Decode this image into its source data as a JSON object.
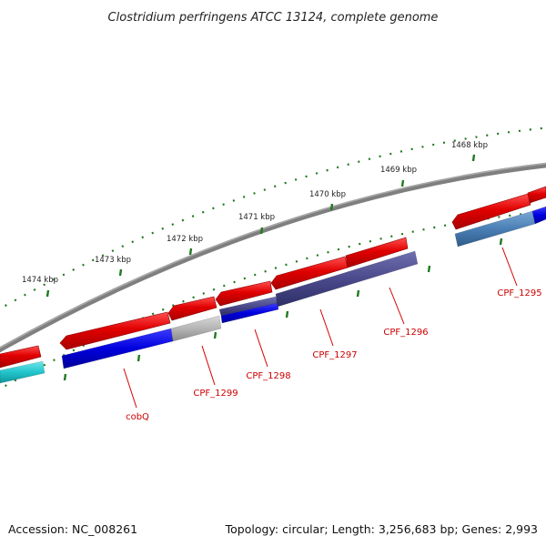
{
  "title": "Clostridium perfringens ATCC 13124, complete genome",
  "footer": {
    "accession": "Accession: NC_008261",
    "summary": "Topology: circular; Length: 3,256,683 bp; Genes: 2,993"
  },
  "kbp_labels": [
    "1468 kbp",
    "1469 kbp",
    "1470 kbp",
    "1471 kbp",
    "1472 kbp",
    "1473 kbp",
    "1474 kbp"
  ],
  "gene_labels": [
    "CPF_1295",
    "CPF_1296",
    "CPF_1297",
    "CPF_1298",
    "CPF_1299",
    "cobQ"
  ],
  "colors": {
    "backbone": "#7f7f7f",
    "scale_ticks": "#1f7a1f",
    "cds": "#e00000",
    "label": "#cc0000",
    "gene_blue": "#0000dd",
    "gene_cyan": "#22c5cc",
    "gene_gray": "#b5b5b5",
    "gene_indigo": "#4a4a8c",
    "gene_steel": "#4a7fb5"
  }
}
